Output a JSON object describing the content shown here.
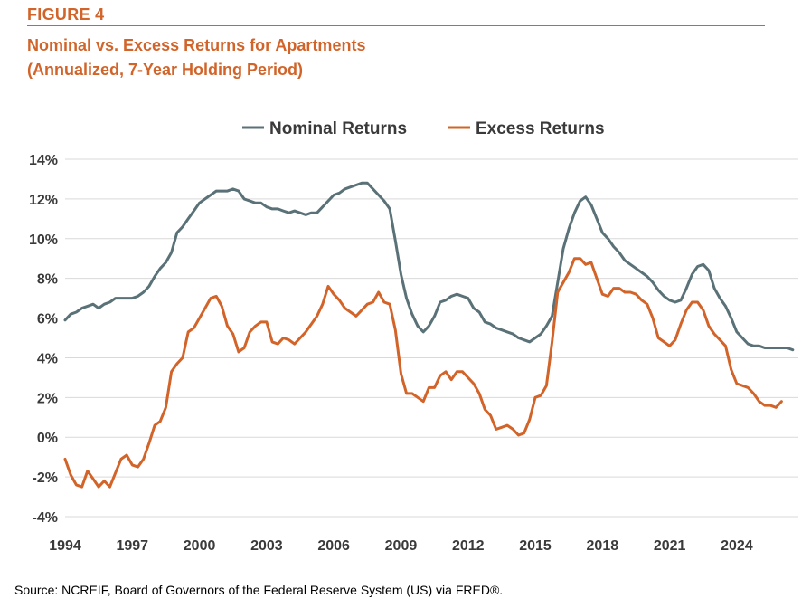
{
  "figure_label": "FIGURE 4",
  "title_line1": "Nominal vs. Excess Returns for Apartments",
  "title_line2": "(Annualized, 7-Year Holding Period)",
  "source": "Source: NCREIF, Board of Governors of the Federal Reserve System (US) via FRED®.",
  "colors": {
    "nominal": "#5a7277",
    "excess": "#d2642a",
    "accent": "#d2642a",
    "grid": "#d9d9d9"
  },
  "chart_data": {
    "type": "line",
    "xlim": [
      1994,
      2026.75
    ],
    "ylim": [
      -4,
      14
    ],
    "x_ticks": [
      1994,
      1997,
      2000,
      2003,
      2006,
      2009,
      2012,
      2015,
      2018,
      2021,
      2024
    ],
    "x_tick_labels": [
      "1994",
      "1997",
      "2000",
      "2003",
      "2006",
      "2009",
      "2012",
      "2015",
      "2018",
      "2021",
      "2024"
    ],
    "y_ticks": [
      -4,
      -2,
      0,
      2,
      4,
      6,
      8,
      10,
      12,
      14
    ],
    "y_tick_labels": [
      "-4%",
      "-2%",
      "0%",
      "2%",
      "4%",
      "6%",
      "8%",
      "10%",
      "12%",
      "14%"
    ],
    "grid": true,
    "legend_position": "top",
    "series": [
      {
        "name": "Nominal Returns",
        "color": "#5a7277",
        "points": [
          [
            1994.0,
            5.9
          ],
          [
            1994.25,
            6.2
          ],
          [
            1994.5,
            6.3
          ],
          [
            1994.75,
            6.5
          ],
          [
            1995.0,
            6.6
          ],
          [
            1995.25,
            6.7
          ],
          [
            1995.5,
            6.5
          ],
          [
            1995.75,
            6.7
          ],
          [
            1996.0,
            6.8
          ],
          [
            1996.25,
            7.0
          ],
          [
            1996.5,
            7.0
          ],
          [
            1996.75,
            7.0
          ],
          [
            1997.0,
            7.0
          ],
          [
            1997.25,
            7.1
          ],
          [
            1997.5,
            7.3
          ],
          [
            1997.75,
            7.6
          ],
          [
            1998.0,
            8.1
          ],
          [
            1998.25,
            8.5
          ],
          [
            1998.5,
            8.8
          ],
          [
            1998.75,
            9.3
          ],
          [
            1999.0,
            10.3
          ],
          [
            1999.25,
            10.6
          ],
          [
            1999.5,
            11.0
          ],
          [
            1999.75,
            11.4
          ],
          [
            2000.0,
            11.8
          ],
          [
            2000.25,
            12.0
          ],
          [
            2000.5,
            12.2
          ],
          [
            2000.75,
            12.4
          ],
          [
            2001.0,
            12.4
          ],
          [
            2001.25,
            12.4
          ],
          [
            2001.5,
            12.5
          ],
          [
            2001.75,
            12.4
          ],
          [
            2002.0,
            12.0
          ],
          [
            2002.25,
            11.9
          ],
          [
            2002.5,
            11.8
          ],
          [
            2002.75,
            11.8
          ],
          [
            2003.0,
            11.6
          ],
          [
            2003.25,
            11.5
          ],
          [
            2003.5,
            11.5
          ],
          [
            2003.75,
            11.4
          ],
          [
            2004.0,
            11.3
          ],
          [
            2004.25,
            11.4
          ],
          [
            2004.5,
            11.3
          ],
          [
            2004.75,
            11.2
          ],
          [
            2005.0,
            11.3
          ],
          [
            2005.25,
            11.3
          ],
          [
            2005.5,
            11.6
          ],
          [
            2005.75,
            11.9
          ],
          [
            2006.0,
            12.2
          ],
          [
            2006.25,
            12.3
          ],
          [
            2006.5,
            12.5
          ],
          [
            2006.75,
            12.6
          ],
          [
            2007.0,
            12.7
          ],
          [
            2007.25,
            12.8
          ],
          [
            2007.5,
            12.8
          ],
          [
            2007.75,
            12.5
          ],
          [
            2008.0,
            12.2
          ],
          [
            2008.25,
            11.9
          ],
          [
            2008.5,
            11.5
          ],
          [
            2008.75,
            9.9
          ],
          [
            2009.0,
            8.2
          ],
          [
            2009.25,
            7.0
          ],
          [
            2009.5,
            6.2
          ],
          [
            2009.75,
            5.6
          ],
          [
            2010.0,
            5.3
          ],
          [
            2010.25,
            5.6
          ],
          [
            2010.5,
            6.1
          ],
          [
            2010.75,
            6.8
          ],
          [
            2011.0,
            6.9
          ],
          [
            2011.25,
            7.1
          ],
          [
            2011.5,
            7.2
          ],
          [
            2011.75,
            7.1
          ],
          [
            2012.0,
            7.0
          ],
          [
            2012.25,
            6.5
          ],
          [
            2012.5,
            6.3
          ],
          [
            2012.75,
            5.8
          ],
          [
            2013.0,
            5.7
          ],
          [
            2013.25,
            5.5
          ],
          [
            2013.5,
            5.4
          ],
          [
            2013.75,
            5.3
          ],
          [
            2014.0,
            5.2
          ],
          [
            2014.25,
            5.0
          ],
          [
            2014.5,
            4.9
          ],
          [
            2014.75,
            4.8
          ],
          [
            2015.0,
            5.0
          ],
          [
            2015.25,
            5.2
          ],
          [
            2015.5,
            5.6
          ],
          [
            2015.75,
            6.1
          ],
          [
            2016.0,
            7.8
          ],
          [
            2016.25,
            9.5
          ],
          [
            2016.5,
            10.5
          ],
          [
            2016.75,
            11.3
          ],
          [
            2017.0,
            11.9
          ],
          [
            2017.25,
            12.1
          ],
          [
            2017.5,
            11.7
          ],
          [
            2017.75,
            11.0
          ],
          [
            2018.0,
            10.3
          ],
          [
            2018.25,
            10.0
          ],
          [
            2018.5,
            9.6
          ],
          [
            2018.75,
            9.3
          ],
          [
            2019.0,
            8.9
          ],
          [
            2019.25,
            8.7
          ],
          [
            2019.5,
            8.5
          ],
          [
            2019.75,
            8.3
          ],
          [
            2020.0,
            8.1
          ],
          [
            2020.25,
            7.8
          ],
          [
            2020.5,
            7.4
          ],
          [
            2020.75,
            7.1
          ],
          [
            2021.0,
            6.9
          ],
          [
            2021.25,
            6.8
          ],
          [
            2021.5,
            6.9
          ],
          [
            2021.75,
            7.5
          ],
          [
            2022.0,
            8.2
          ],
          [
            2022.25,
            8.6
          ],
          [
            2022.5,
            8.7
          ],
          [
            2022.75,
            8.4
          ],
          [
            2023.0,
            7.5
          ],
          [
            2023.25,
            7.0
          ],
          [
            2023.5,
            6.6
          ],
          [
            2023.75,
            6.0
          ],
          [
            2024.0,
            5.3
          ],
          [
            2024.25,
            5.0
          ],
          [
            2024.5,
            4.7
          ],
          [
            2024.75,
            4.6
          ],
          [
            2025.0,
            4.6
          ],
          [
            2025.25,
            4.5
          ],
          [
            2025.5,
            4.5
          ],
          [
            2025.75,
            4.5
          ],
          [
            2026.0,
            4.5
          ],
          [
            2026.25,
            4.5
          ],
          [
            2026.5,
            4.4
          ]
        ]
      },
      {
        "name": "Excess Returns",
        "color": "#d2642a",
        "points": [
          [
            1994.0,
            -1.1
          ],
          [
            1994.25,
            -1.9
          ],
          [
            1994.5,
            -2.4
          ],
          [
            1994.75,
            -2.5
          ],
          [
            1995.0,
            -1.7
          ],
          [
            1995.25,
            -2.1
          ],
          [
            1995.5,
            -2.5
          ],
          [
            1995.75,
            -2.2
          ],
          [
            1996.0,
            -2.5
          ],
          [
            1996.25,
            -1.8
          ],
          [
            1996.5,
            -1.1
          ],
          [
            1996.75,
            -0.9
          ],
          [
            1997.0,
            -1.4
          ],
          [
            1997.25,
            -1.5
          ],
          [
            1997.5,
            -1.1
          ],
          [
            1997.75,
            -0.3
          ],
          [
            1998.0,
            0.6
          ],
          [
            1998.25,
            0.8
          ],
          [
            1998.5,
            1.5
          ],
          [
            1998.75,
            3.3
          ],
          [
            1999.0,
            3.7
          ],
          [
            1999.25,
            4.0
          ],
          [
            1999.5,
            5.3
          ],
          [
            1999.75,
            5.5
          ],
          [
            2000.0,
            6.0
          ],
          [
            2000.25,
            6.5
          ],
          [
            2000.5,
            7.0
          ],
          [
            2000.75,
            7.1
          ],
          [
            2001.0,
            6.6
          ],
          [
            2001.25,
            5.6
          ],
          [
            2001.5,
            5.2
          ],
          [
            2001.75,
            4.3
          ],
          [
            2002.0,
            4.5
          ],
          [
            2002.25,
            5.3
          ],
          [
            2002.5,
            5.6
          ],
          [
            2002.75,
            5.8
          ],
          [
            2003.0,
            5.8
          ],
          [
            2003.25,
            4.8
          ],
          [
            2003.5,
            4.7
          ],
          [
            2003.75,
            5.0
          ],
          [
            2004.0,
            4.9
          ],
          [
            2004.25,
            4.7
          ],
          [
            2004.5,
            5.0
          ],
          [
            2004.75,
            5.3
          ],
          [
            2005.0,
            5.7
          ],
          [
            2005.25,
            6.1
          ],
          [
            2005.5,
            6.7
          ],
          [
            2005.75,
            7.6
          ],
          [
            2006.0,
            7.2
          ],
          [
            2006.25,
            6.9
          ],
          [
            2006.5,
            6.5
          ],
          [
            2006.75,
            6.3
          ],
          [
            2007.0,
            6.1
          ],
          [
            2007.25,
            6.4
          ],
          [
            2007.5,
            6.7
          ],
          [
            2007.75,
            6.8
          ],
          [
            2008.0,
            7.3
          ],
          [
            2008.25,
            6.8
          ],
          [
            2008.5,
            6.7
          ],
          [
            2008.75,
            5.4
          ],
          [
            2009.0,
            3.2
          ],
          [
            2009.25,
            2.2
          ],
          [
            2009.5,
            2.2
          ],
          [
            2009.75,
            2.0
          ],
          [
            2010.0,
            1.8
          ],
          [
            2010.25,
            2.5
          ],
          [
            2010.5,
            2.5
          ],
          [
            2010.75,
            3.1
          ],
          [
            2011.0,
            3.3
          ],
          [
            2011.25,
            2.9
          ],
          [
            2011.5,
            3.3
          ],
          [
            2011.75,
            3.3
          ],
          [
            2012.0,
            3.0
          ],
          [
            2012.25,
            2.7
          ],
          [
            2012.5,
            2.2
          ],
          [
            2012.75,
            1.4
          ],
          [
            2013.0,
            1.1
          ],
          [
            2013.25,
            0.4
          ],
          [
            2013.5,
            0.5
          ],
          [
            2013.75,
            0.6
          ],
          [
            2014.0,
            0.4
          ],
          [
            2014.25,
            0.1
          ],
          [
            2014.5,
            0.2
          ],
          [
            2014.75,
            0.9
          ],
          [
            2015.0,
            2.0
          ],
          [
            2015.25,
            2.1
          ],
          [
            2015.5,
            2.6
          ],
          [
            2015.75,
            4.8
          ],
          [
            2016.0,
            7.3
          ],
          [
            2016.25,
            7.8
          ],
          [
            2016.5,
            8.3
          ],
          [
            2016.75,
            9.0
          ],
          [
            2017.0,
            9.0
          ],
          [
            2017.25,
            8.7
          ],
          [
            2017.5,
            8.8
          ],
          [
            2017.75,
            8.0
          ],
          [
            2018.0,
            7.2
          ],
          [
            2018.25,
            7.1
          ],
          [
            2018.5,
            7.5
          ],
          [
            2018.75,
            7.5
          ],
          [
            2019.0,
            7.3
          ],
          [
            2019.25,
            7.3
          ],
          [
            2019.5,
            7.2
          ],
          [
            2019.75,
            6.9
          ],
          [
            2020.0,
            6.7
          ],
          [
            2020.25,
            6.0
          ],
          [
            2020.5,
            5.0
          ],
          [
            2020.75,
            4.8
          ],
          [
            2021.0,
            4.6
          ],
          [
            2021.25,
            4.9
          ],
          [
            2021.5,
            5.7
          ],
          [
            2021.75,
            6.4
          ],
          [
            2022.0,
            6.8
          ],
          [
            2022.25,
            6.8
          ],
          [
            2022.5,
            6.4
          ],
          [
            2022.75,
            5.6
          ],
          [
            2023.0,
            5.2
          ],
          [
            2023.25,
            4.9
          ],
          [
            2023.5,
            4.6
          ],
          [
            2023.75,
            3.4
          ],
          [
            2024.0,
            2.7
          ],
          [
            2024.25,
            2.6
          ],
          [
            2024.5,
            2.5
          ],
          [
            2024.75,
            2.2
          ],
          [
            2025.0,
            1.8
          ],
          [
            2025.25,
            1.6
          ],
          [
            2025.5,
            1.6
          ],
          [
            2025.75,
            1.5
          ],
          [
            2026.0,
            1.8
          ]
        ]
      }
    ]
  }
}
